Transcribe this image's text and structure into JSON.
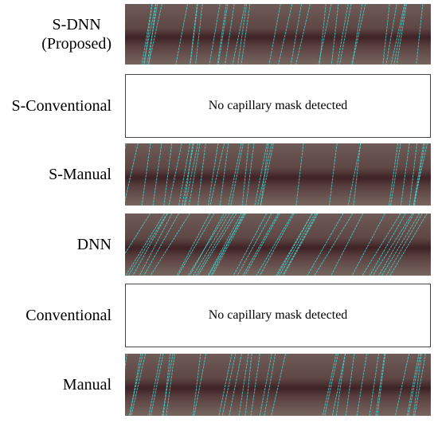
{
  "rows": [
    {
      "label": "S-DNN",
      "note": "(Proposed)",
      "panel": "image"
    },
    {
      "label": "S-Conventional",
      "panel": "message",
      "message": "No capillary mask detected"
    },
    {
      "label": "S-Manual",
      "panel": "image"
    },
    {
      "label": "DNN",
      "panel": "image"
    },
    {
      "label": "Conventional",
      "panel": "message",
      "message": "No capillary mask detected"
    },
    {
      "label": "Manual",
      "panel": "image"
    }
  ]
}
